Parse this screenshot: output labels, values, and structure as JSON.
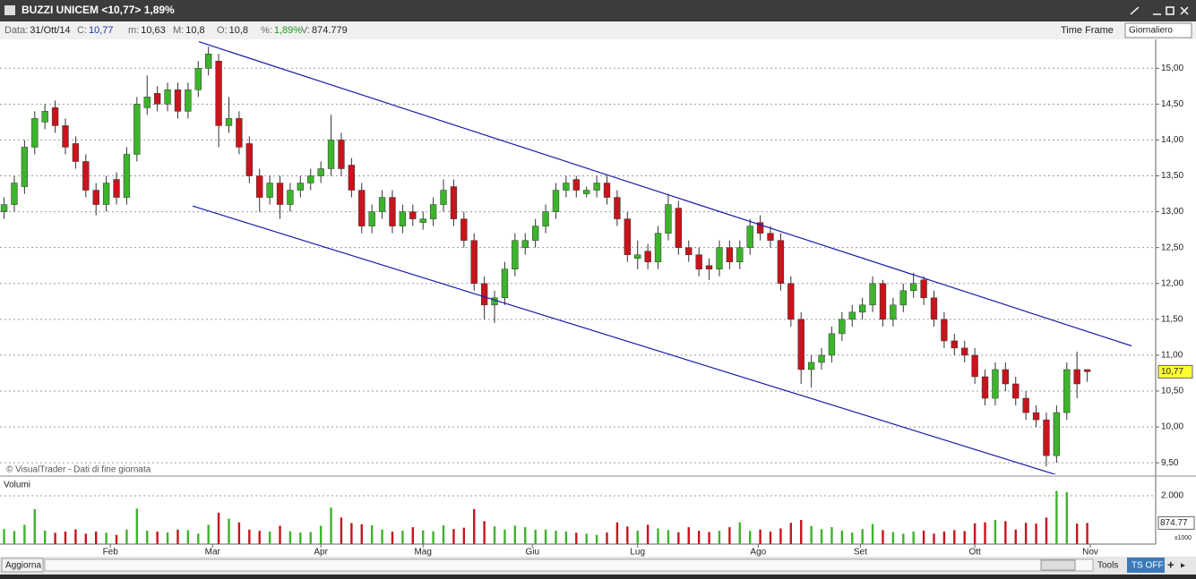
{
  "window": {
    "title": "BUZZI UNICEM <10,77> 1,89%"
  },
  "info_bar": {
    "fields": [
      {
        "label": "Data:",
        "value": "31/Ott/14"
      },
      {
        "label": "C:",
        "value": "10,77"
      },
      {
        "label": "m:",
        "value": "10,63"
      },
      {
        "label": "M:",
        "value": "10,8"
      },
      {
        "label": "O:",
        "value": "10,8"
      },
      {
        "label": "%:",
        "value": "1,89%"
      },
      {
        "label": "V:",
        "value": "874.779"
      }
    ],
    "time_frame_label": "Time Frame",
    "time_frame": "Giornaliero"
  },
  "chart_data": {
    "type": "candlestick",
    "copyright": "© VisualTrader - Dati di fine giornata",
    "volume_title": "Volumi",
    "volume_unit": "x1000",
    "up_color": "#3cb42c",
    "down_color": "#c8141c",
    "trendline_color": "#1c1ca8",
    "grid": true,
    "open": [
      13.0,
      13.1,
      13.35,
      13.9,
      14.25,
      14.45,
      14.2,
      13.95,
      13.7,
      13.3,
      13.1,
      13.45,
      13.2,
      13.8,
      14.45,
      14.65,
      14.5,
      14.7,
      14.4,
      14.7,
      15.0,
      15.1,
      14.2,
      14.3,
      13.95,
      13.5,
      13.2,
      13.4,
      13.1,
      13.3,
      13.4,
      13.5,
      13.6,
      14.0,
      13.65,
      13.3,
      12.8,
      13.0,
      13.2,
      12.8,
      13.0,
      12.85,
      12.9,
      13.1,
      13.35,
      12.9,
      12.6,
      12.0,
      11.7,
      11.8,
      12.2,
      12.5,
      12.6,
      12.8,
      13.0,
      13.3,
      13.45,
      13.25,
      13.3,
      13.4,
      13.2,
      12.9,
      12.35,
      12.45,
      12.3,
      12.7,
      13.05,
      12.5,
      12.4,
      12.25,
      12.2,
      12.5,
      12.3,
      12.5,
      12.85,
      12.7,
      12.6,
      12.0,
      11.5,
      10.8,
      10.9,
      11.0,
      11.3,
      11.5,
      11.6,
      11.7,
      12.0,
      11.5,
      11.7,
      11.9,
      12.05,
      11.8,
      11.5,
      11.2,
      11.1,
      11.0,
      10.7,
      10.4,
      10.8,
      10.6,
      10.4,
      10.2,
      10.1,
      9.6,
      10.2,
      10.8,
      10.8
    ],
    "high": [
      13.2,
      13.5,
      14.0,
      14.4,
      14.5,
      14.55,
      14.3,
      14.05,
      13.8,
      13.4,
      13.5,
      13.55,
      13.9,
      14.6,
      14.9,
      14.75,
      14.8,
      14.8,
      14.8,
      15.1,
      15.3,
      15.2,
      14.6,
      14.4,
      14.05,
      13.6,
      13.5,
      13.5,
      13.4,
      13.5,
      13.6,
      13.7,
      14.35,
      14.1,
      13.75,
      13.4,
      13.1,
      13.3,
      13.3,
      13.1,
      13.1,
      13.0,
      13.2,
      13.45,
      13.45,
      13.0,
      12.7,
      12.1,
      11.9,
      12.3,
      12.7,
      12.7,
      12.9,
      13.1,
      13.4,
      13.5,
      13.5,
      13.35,
      13.5,
      13.5,
      13.3,
      13.0,
      12.6,
      12.55,
      12.8,
      13.25,
      13.15,
      12.6,
      12.5,
      12.35,
      12.6,
      12.6,
      12.6,
      12.9,
      12.95,
      12.8,
      12.7,
      12.1,
      11.6,
      11.0,
      11.1,
      11.4,
      11.6,
      11.7,
      11.8,
      12.1,
      12.05,
      11.8,
      12.0,
      12.15,
      12.1,
      11.9,
      11.6,
      11.3,
      11.2,
      11.1,
      10.8,
      10.9,
      10.9,
      10.7,
      10.5,
      10.3,
      10.2,
      10.3,
      10.9,
      11.05,
      10.8
    ],
    "low": [
      12.9,
      13.0,
      13.25,
      13.8,
      14.15,
      14.1,
      13.8,
      13.6,
      13.2,
      12.95,
      13.0,
      13.1,
      13.1,
      13.7,
      14.35,
      14.4,
      14.4,
      14.3,
      14.3,
      14.6,
      14.9,
      13.9,
      14.1,
      13.8,
      13.4,
      13.0,
      13.1,
      12.9,
      13.0,
      13.2,
      13.3,
      13.4,
      13.5,
      13.5,
      13.2,
      12.7,
      12.7,
      12.9,
      12.7,
      12.7,
      12.8,
      12.75,
      12.8,
      13.0,
      12.8,
      12.5,
      11.9,
      11.5,
      11.45,
      11.7,
      12.1,
      12.4,
      12.5,
      12.7,
      12.9,
      13.2,
      13.2,
      13.2,
      13.2,
      13.1,
      12.8,
      12.3,
      12.2,
      12.2,
      12.2,
      12.6,
      12.4,
      12.3,
      12.1,
      12.05,
      12.1,
      12.2,
      12.2,
      12.4,
      12.6,
      12.5,
      11.9,
      11.4,
      10.6,
      10.55,
      10.8,
      10.9,
      11.2,
      11.4,
      11.5,
      11.6,
      11.4,
      11.4,
      11.6,
      11.8,
      11.7,
      11.4,
      11.1,
      11.0,
      10.9,
      10.6,
      10.3,
      10.3,
      10.5,
      10.3,
      10.1,
      10.0,
      9.45,
      9.5,
      10.1,
      10.4,
      10.63
    ],
    "close": [
      13.1,
      13.4,
      13.9,
      14.3,
      14.4,
      14.2,
      13.9,
      13.7,
      13.3,
      13.1,
      13.4,
      13.2,
      13.8,
      14.5,
      14.6,
      14.5,
      14.7,
      14.4,
      14.7,
      15.0,
      15.2,
      14.2,
      14.3,
      13.9,
      13.5,
      13.2,
      13.4,
      13.1,
      13.3,
      13.4,
      13.5,
      13.6,
      14.0,
      13.6,
      13.3,
      12.8,
      13.0,
      13.2,
      12.8,
      13.0,
      12.9,
      12.9,
      13.1,
      13.3,
      12.9,
      12.6,
      12.0,
      11.7,
      11.8,
      12.2,
      12.6,
      12.6,
      12.8,
      13.0,
      13.3,
      13.4,
      13.3,
      13.3,
      13.4,
      13.2,
      12.9,
      12.4,
      12.4,
      12.3,
      12.7,
      13.1,
      12.5,
      12.4,
      12.2,
      12.2,
      12.5,
      12.3,
      12.5,
      12.8,
      12.7,
      12.6,
      12.0,
      11.5,
      10.8,
      10.9,
      11.0,
      11.3,
      11.5,
      11.6,
      11.7,
      12.0,
      11.5,
      11.7,
      11.9,
      12.0,
      11.8,
      11.5,
      11.2,
      11.1,
      11.0,
      10.7,
      10.4,
      10.8,
      10.6,
      10.4,
      10.2,
      10.1,
      9.6,
      10.2,
      10.8,
      10.6,
      10.77
    ],
    "volume": [
      620,
      540,
      800,
      1450,
      560,
      470,
      520,
      610,
      430,
      520,
      470,
      380,
      600,
      1470,
      560,
      520,
      480,
      600,
      580,
      430,
      800,
      1300,
      1050,
      900,
      600,
      550,
      520,
      760,
      530,
      480,
      500,
      760,
      1510,
      1100,
      870,
      820,
      780,
      600,
      520,
      560,
      700,
      570,
      530,
      780,
      620,
      680,
      1450,
      950,
      730,
      600,
      760,
      700,
      590,
      600,
      550,
      520,
      470,
      430,
      380,
      480,
      900,
      730,
      560,
      800,
      650,
      580,
      490,
      700,
      550,
      500,
      550,
      700,
      900,
      550,
      600,
      520,
      650,
      880,
      1000,
      750,
      620,
      700,
      560,
      480,
      620,
      830,
      580,
      500,
      430,
      520,
      560,
      430,
      520,
      580,
      540,
      860,
      900,
      1000,
      950,
      600,
      880,
      850,
      1100,
      2200,
      2150,
      850,
      874.77
    ],
    "xlim": [
      -0.4,
      112.7
    ],
    "xticks": [
      {
        "value": 10.4,
        "label": "Feb"
      },
      {
        "value": 20.4,
        "label": "Mar"
      },
      {
        "value": 31,
        "label": "Apr"
      },
      {
        "value": 41,
        "label": "Mag"
      },
      {
        "value": 51.7,
        "label": "Giu"
      },
      {
        "value": 62,
        "label": "Lug"
      },
      {
        "value": 73.8,
        "label": "Ago"
      },
      {
        "value": 83.8,
        "label": "Set"
      },
      {
        "value": 95,
        "label": "Ott"
      },
      {
        "value": 106.3,
        "label": "Nov"
      }
    ],
    "ylim": [
      9.34,
      15.39
    ],
    "yticks": [
      {
        "value": 9.5,
        "label": "9,50"
      },
      {
        "value": 10,
        "label": "10,00"
      },
      {
        "value": 10.5,
        "label": "10,50"
      },
      {
        "value": 11,
        "label": "11,00"
      },
      {
        "value": 11.5,
        "label": "11,50"
      },
      {
        "value": 12,
        "label": "12,00"
      },
      {
        "value": 12.5,
        "label": "12,50"
      },
      {
        "value": 13,
        "label": "13,00"
      },
      {
        "value": 13.5,
        "label": "13,50"
      },
      {
        "value": 14,
        "label": "14,00"
      },
      {
        "value": 14.5,
        "label": "14,50"
      },
      {
        "value": 15,
        "label": "15,00"
      }
    ],
    "volume_ylim": [
      0,
      2704
    ],
    "volume_yticks": [
      {
        "value": 2000,
        "label": "2.000"
      }
    ],
    "trendlines": [
      {
        "x": [
          19.06,
          110.33
        ],
        "y": [
          15.37,
          11.13
        ]
      },
      {
        "x": [
          18.45,
          103.5
        ],
        "y": [
          13.08,
          9.31
        ]
      }
    ]
  },
  "toolbar": {
    "refresh": "Aggiorna",
    "tools": "Tools",
    "ts": "TS OFF"
  }
}
